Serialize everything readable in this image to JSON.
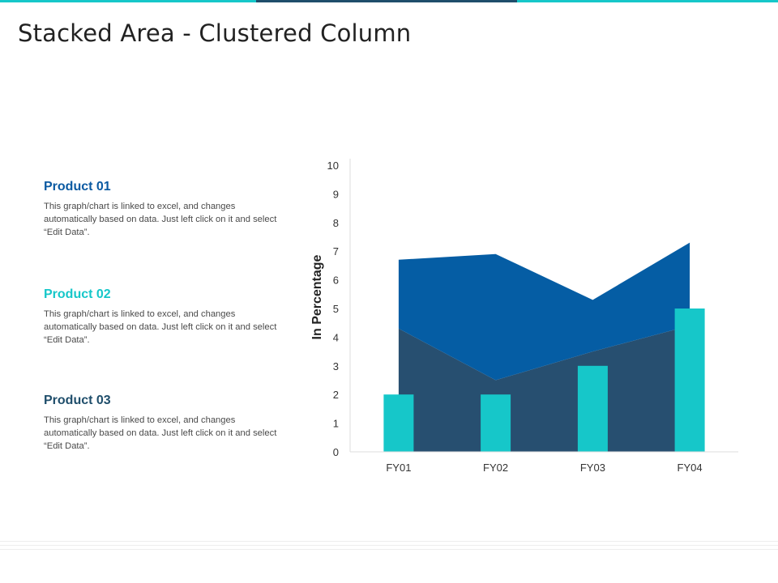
{
  "page": {
    "title": "Stacked Area - Clustered Column",
    "colors": {
      "top_bar": [
        "#16c7c9",
        "#1f4e6b",
        "#16c7c9"
      ],
      "product_01": "#0b5aa2",
      "product_02": "#16c7c9",
      "product_03": "#1f4e6b"
    }
  },
  "products": [
    {
      "title": "Product 01",
      "description": "This graph/chart is linked to excel, and changes automatically based on data. Just left click on it and select “Edit Data”."
    },
    {
      "title": "Product 02",
      "description": "This graph/chart is linked to excel, and changes automatically based on data. Just left click on it and select “Edit Data”."
    },
    {
      "title": "Product 03",
      "description": "This graph/chart is linked to excel, and changes automatically based on data. Just left click on it and select “Edit Data”."
    }
  ],
  "chart_data": {
    "type": "area",
    "categories": [
      "FY01",
      "FY02",
      "FY03",
      "FY04"
    ],
    "ylabel": "In Percentage",
    "ylim": [
      0,
      10
    ],
    "yticks": [
      0,
      1,
      2,
      3,
      4,
      5,
      6,
      7,
      8,
      9,
      10
    ],
    "grid": false,
    "stacked_area_series": [
      {
        "values": [
          4.3,
          2.5,
          3.5,
          4.4
        ],
        "color": "#274f70"
      },
      {
        "values": [
          2.4,
          4.4,
          1.8,
          2.9
        ],
        "color": "#055da4"
      }
    ],
    "column_series": [
      {
        "values": [
          2,
          2,
          3,
          5
        ],
        "color": "#16c7c9"
      }
    ]
  }
}
